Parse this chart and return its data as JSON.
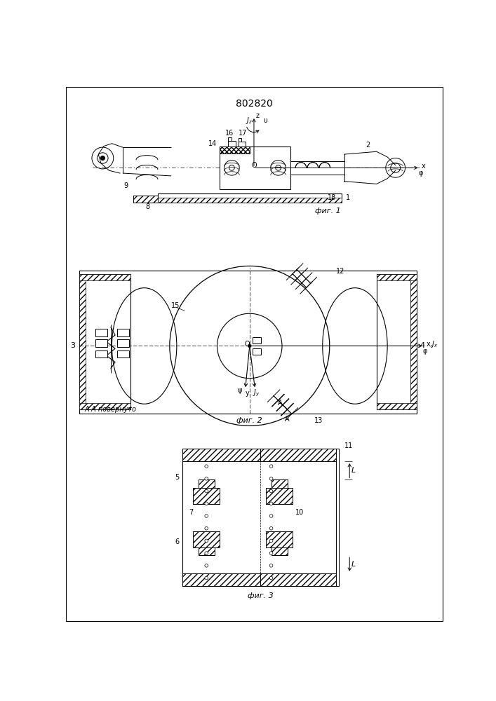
{
  "title": "802820",
  "fig1_cap": "фиг. 1",
  "fig2_cap": "фиг. 2",
  "fig3_cap": "фиг. 3",
  "aa_label": "А-А повернуто"
}
